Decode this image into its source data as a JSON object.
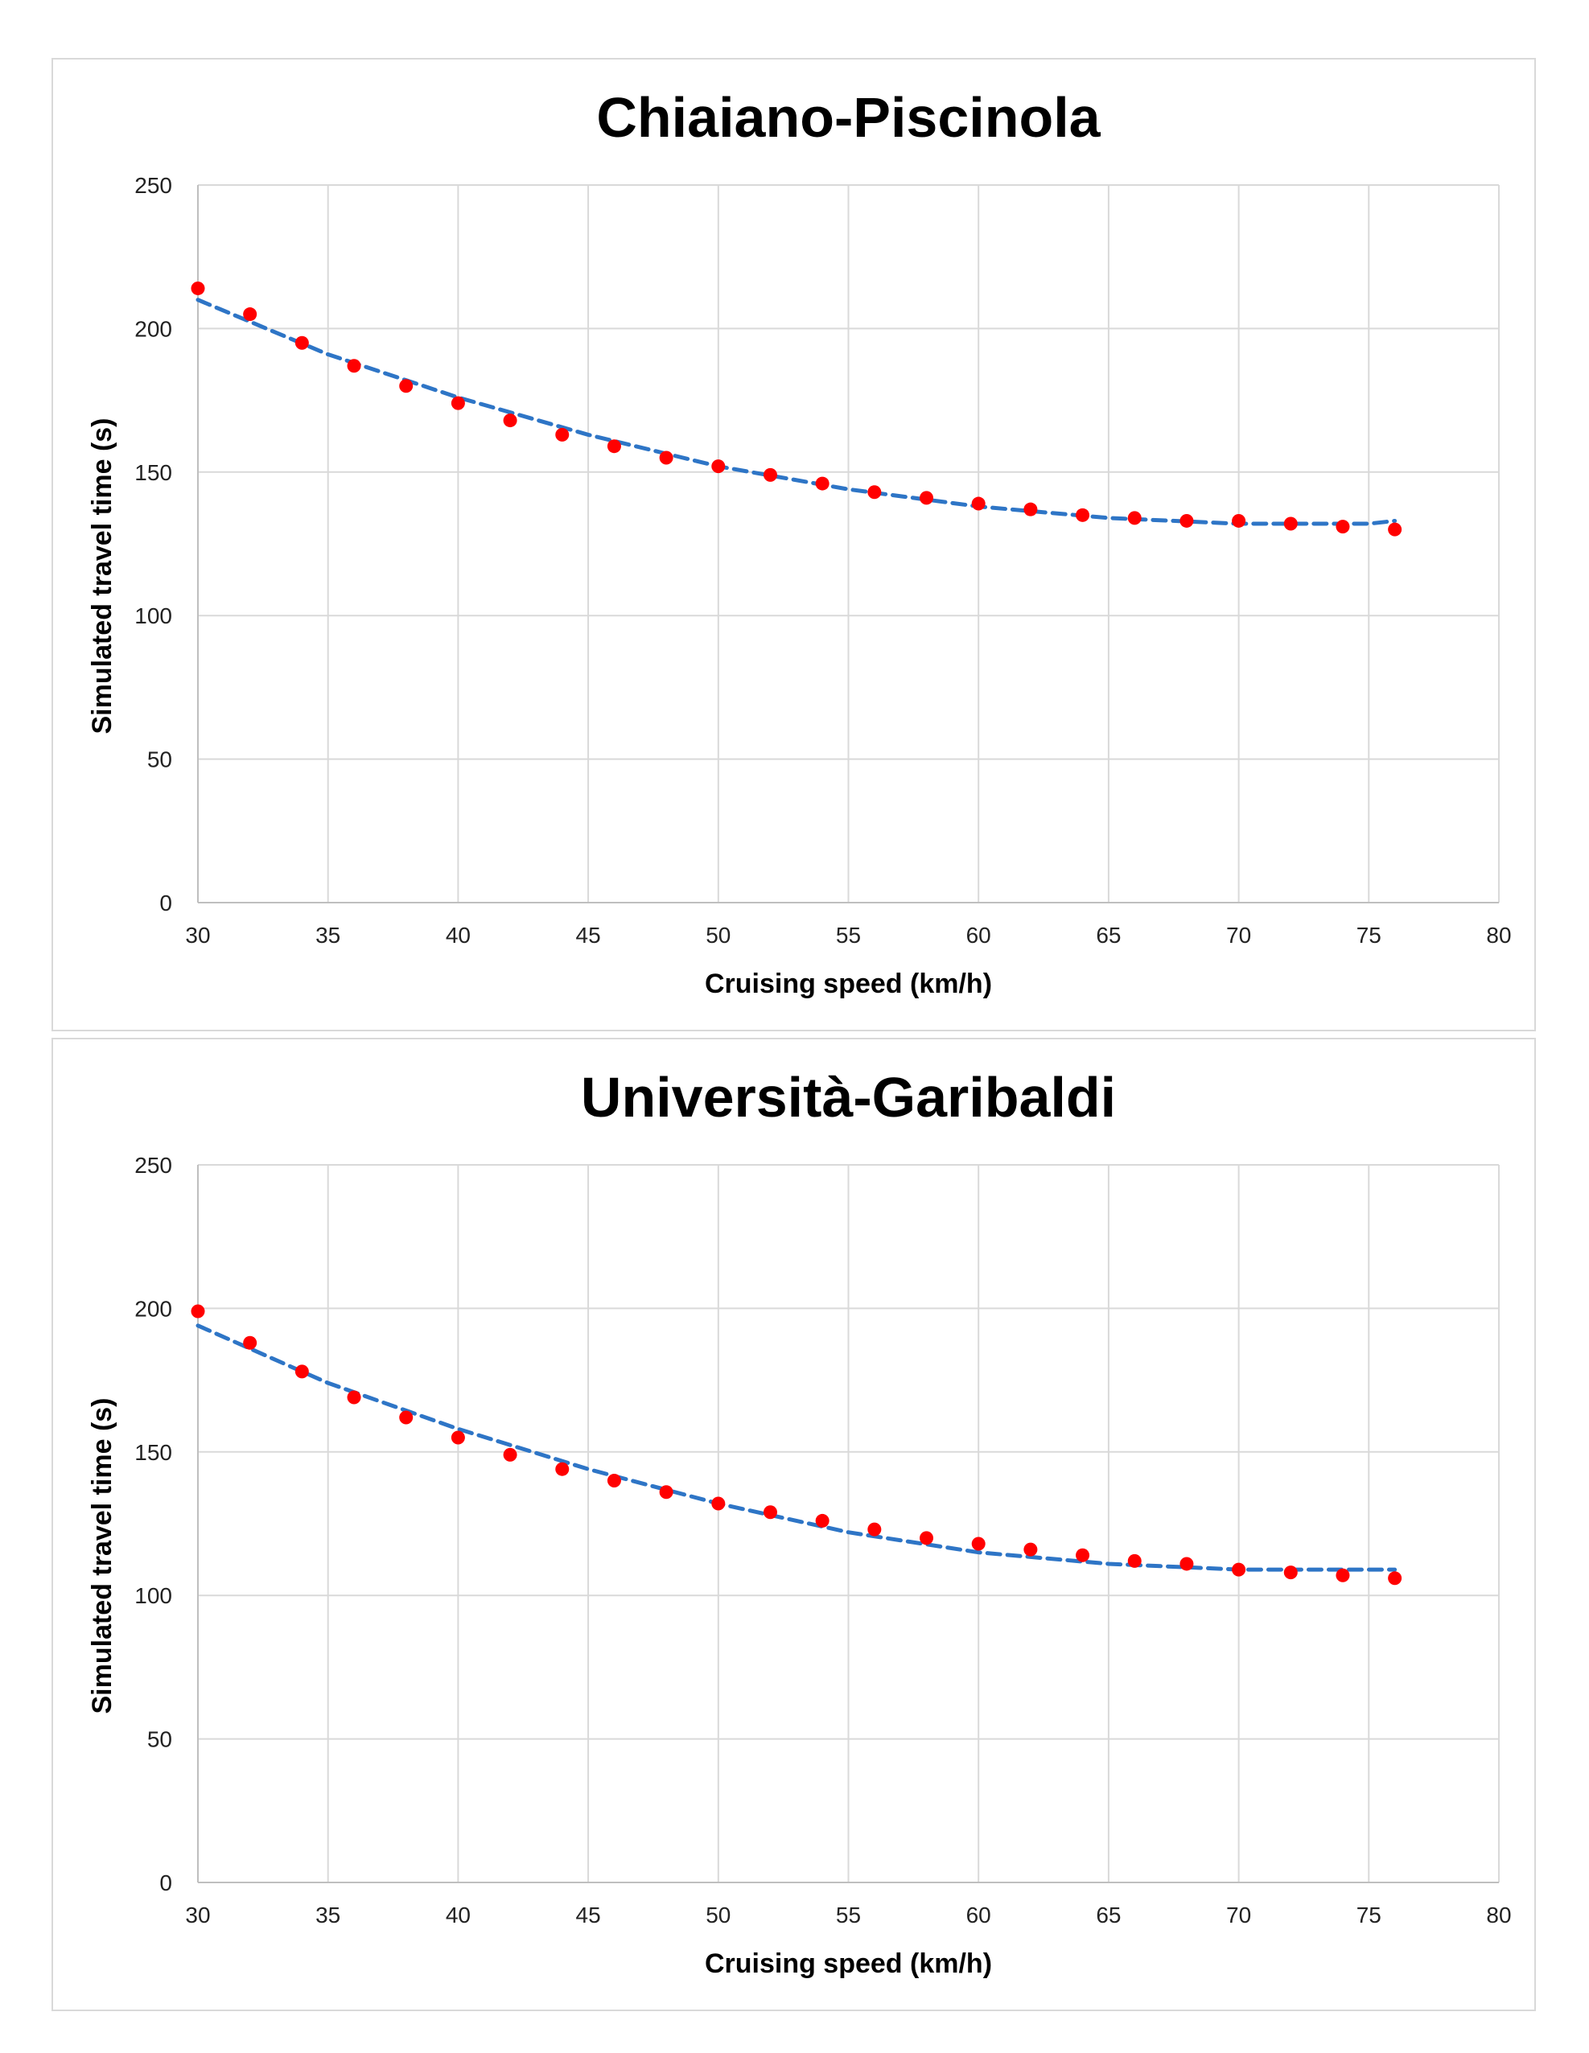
{
  "colors": {
    "points": "#ff0000",
    "trend": "#2e75c6",
    "grid": "#d9d9d9",
    "border": "#d9d9d9"
  },
  "chart_data": [
    {
      "type": "scatter",
      "title": "Chiaiano-Piscinola",
      "xlabel": "Cruising speed (km/h)",
      "ylabel": "Simulated travel time (s)",
      "xlim": [
        30,
        80
      ],
      "ylim": [
        0,
        250
      ],
      "xticks": [
        30,
        35,
        40,
        45,
        50,
        55,
        60,
        65,
        70,
        75,
        80
      ],
      "yticks": [
        0,
        50,
        100,
        150,
        200,
        250
      ],
      "grid": true,
      "legend": "none",
      "series": [
        {
          "name": "Simulated",
          "style": "markers",
          "x": [
            30,
            32,
            34,
            36,
            38,
            40,
            42,
            44,
            46,
            48,
            50,
            52,
            54,
            56,
            58,
            60,
            62,
            64,
            66,
            68,
            70,
            72,
            74,
            76
          ],
          "y": [
            214,
            205,
            195,
            187,
            180,
            174,
            168,
            163,
            159,
            155,
            152,
            149,
            146,
            143,
            141,
            139,
            137,
            135,
            134,
            133,
            133,
            132,
            131,
            130
          ]
        },
        {
          "name": "Trend",
          "style": "dashed-line",
          "x": [
            30,
            35,
            40,
            45,
            50,
            55,
            60,
            65,
            70,
            75,
            76
          ],
          "y": [
            210,
            191,
            176,
            163,
            152,
            144,
            138,
            134,
            132,
            132,
            133
          ]
        }
      ]
    },
    {
      "type": "scatter",
      "title": "Università-Garibaldi",
      "xlabel": "Cruising speed (km/h)",
      "ylabel": "Simulated travel time (s)",
      "xlim": [
        30,
        80
      ],
      "ylim": [
        0,
        250
      ],
      "xticks": [
        30,
        35,
        40,
        45,
        50,
        55,
        60,
        65,
        70,
        75,
        80
      ],
      "yticks": [
        0,
        50,
        100,
        150,
        200,
        250
      ],
      "grid": true,
      "legend": "none",
      "series": [
        {
          "name": "Simulated",
          "style": "markers",
          "x": [
            30,
            32,
            34,
            36,
            38,
            40,
            42,
            44,
            46,
            48,
            50,
            52,
            54,
            56,
            58,
            60,
            62,
            64,
            66,
            68,
            70,
            72,
            74,
            76
          ],
          "y": [
            199,
            188,
            178,
            169,
            162,
            155,
            149,
            144,
            140,
            136,
            132,
            129,
            126,
            123,
            120,
            118,
            116,
            114,
            112,
            111,
            109,
            108,
            107,
            106
          ]
        },
        {
          "name": "Trend",
          "style": "dashed-line",
          "x": [
            30,
            35,
            40,
            45,
            50,
            55,
            60,
            65,
            70,
            75,
            76
          ],
          "y": [
            194,
            174,
            158,
            144,
            132,
            122,
            115,
            111,
            109,
            109,
            109
          ]
        }
      ]
    }
  ]
}
